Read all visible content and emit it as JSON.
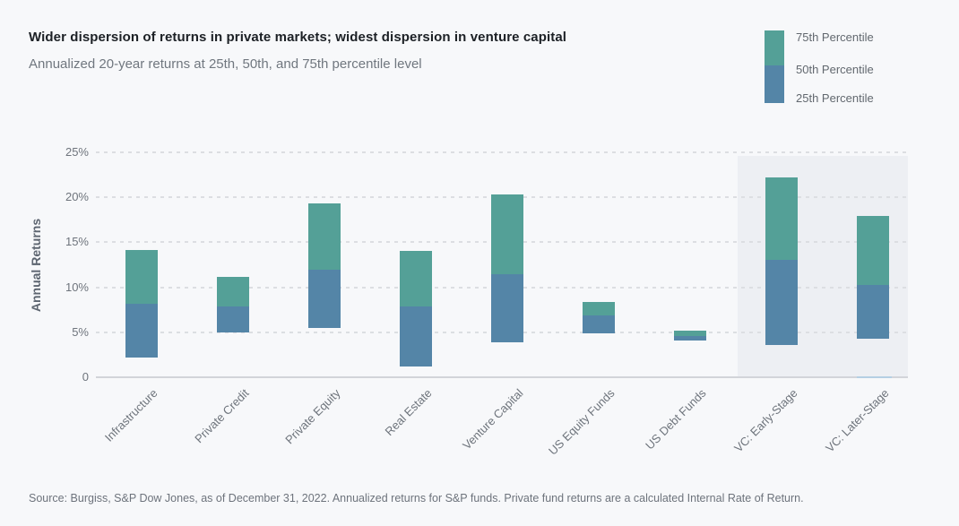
{
  "header": {
    "title": "Wider dispersion of returns in private markets; widest dispersion in venture capital",
    "subtitle": "Annualized 20-year returns at 25th, 50th, and 75th percentile level"
  },
  "legend": {
    "position": "top-right",
    "items": [
      {
        "label": "75th Percentile"
      },
      {
        "label": "50th Percentile"
      },
      {
        "label": "25th Percentile"
      }
    ]
  },
  "chart_data": {
    "type": "bar",
    "subtype": "floating_percentile_range_bars",
    "categories": [
      "Infrastructure",
      "Private Credit",
      "Private Equity",
      "Real Estate",
      "Venture Capital",
      "US Equity Funds",
      "US Debt Funds",
      "VC: Early-Stage",
      "VC: Later-Stage"
    ],
    "series": [
      {
        "name": "25th Percentile",
        "values": [
          2.2,
          5.0,
          5.5,
          1.2,
          3.9,
          4.9,
          4.1,
          3.6,
          4.3
        ]
      },
      {
        "name": "50th Percentile",
        "values": [
          8.2,
          7.9,
          12.0,
          7.9,
          11.5,
          6.9,
          4.6,
          13.0,
          10.3
        ]
      },
      {
        "name": "75th Percentile",
        "values": [
          14.1,
          11.2,
          19.3,
          14.0,
          20.3,
          8.4,
          5.2,
          22.2,
          17.9
        ]
      }
    ],
    "segment_encoding": {
      "lower_blue": "25th to 50th percentile",
      "upper_green": "50th to 75th percentile"
    },
    "xlabel": "",
    "ylabel": "Annual Returns",
    "ylim": [
      0,
      25
    ],
    "yticks": [
      {
        "value": 0,
        "label": "0"
      },
      {
        "value": 5,
        "label": "5%"
      },
      {
        "value": 10,
        "label": "10%"
      },
      {
        "value": 15,
        "label": "15%"
      },
      {
        "value": 20,
        "label": "20%"
      },
      {
        "value": 25,
        "label": "25%"
      }
    ],
    "grid": "dashed horizontal gridlines",
    "highlighted_categories": [
      "VC: Early-Stage",
      "VC: Later-Stage"
    ]
  },
  "source": {
    "text": "Source: Burgiss, S&P Dow Jones, as of December 31, 2022. Annualized returns for S&P funds. Private fund returns are a calculated Internal Rate of Return."
  },
  "colors": {
    "upper_segment_green": "#54a097",
    "lower_segment_blue": "#5485a7",
    "page_background": "#f7f8fa",
    "highlight_panel": "#edeff3",
    "gridline": "#dcdee2",
    "axis_line": "#d2d4d9",
    "axis_highlight_blue": "#b5cfe3",
    "title_text": "#1c2025",
    "muted_text": "#6e747c"
  }
}
